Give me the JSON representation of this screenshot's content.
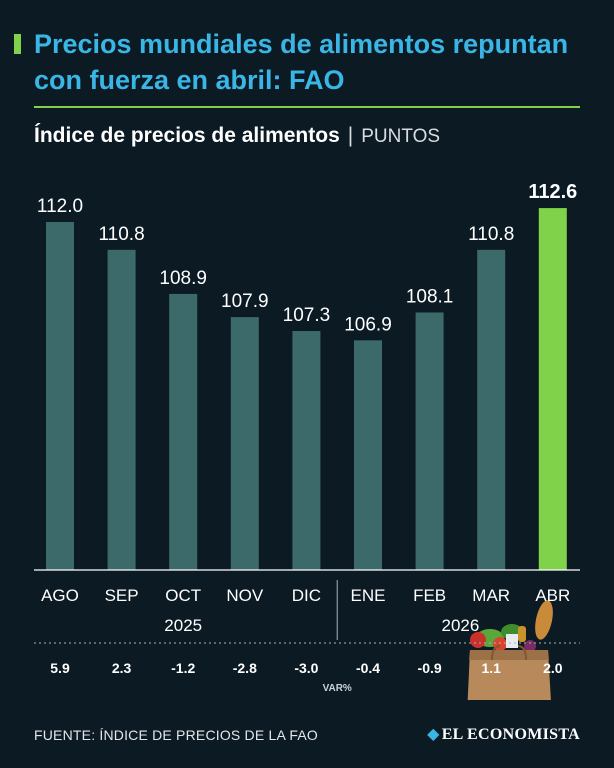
{
  "header": {
    "title": "Precios mundiales de alimentos repuntan con fuerza en abril: FAO",
    "subtitle": "Índice de precios de alimentos",
    "subtitle_sep": "|",
    "unit": "PUNTOS"
  },
  "colors": {
    "bar": "#3c6a6a",
    "highlight_bar": "#7fd24a",
    "title": "#3ab6e6",
    "background": "#0c1a24"
  },
  "chart_data": {
    "type": "bar",
    "categories": [
      "AGO",
      "SEP",
      "OCT",
      "NOV",
      "DIC",
      "ENE",
      "FEB",
      "MAR",
      "ABR"
    ],
    "values": [
      112.0,
      110.8,
      108.9,
      107.9,
      107.3,
      106.9,
      108.1,
      110.8,
      112.6
    ],
    "value_labels": [
      "112.0",
      "110.8",
      "108.9",
      "107.9",
      "107.3",
      "106.9",
      "108.1",
      "110.8",
      "112.6"
    ],
    "highlight_index": 8,
    "years": [
      {
        "label": "2025",
        "from": 0,
        "to": 4
      },
      {
        "label": "2026",
        "from": 5,
        "to": 8
      }
    ],
    "var_values": [
      "5.9",
      "2.3",
      "-1.2",
      "-2.8",
      "-3.0",
      "-0.4",
      "-0.9",
      "1.1",
      "2.0"
    ],
    "var_label": "VAR%",
    "title": "Índice de precios de alimentos",
    "ylabel": "PUNTOS",
    "grid": false,
    "decoration": "grocery-bag-icon"
  },
  "footer": {
    "source": "FUENTE: ÍNDICE DE PRECIOS DE LA FAO",
    "brand": "EL ECONOMISTA",
    "brand_mark": "◆"
  }
}
